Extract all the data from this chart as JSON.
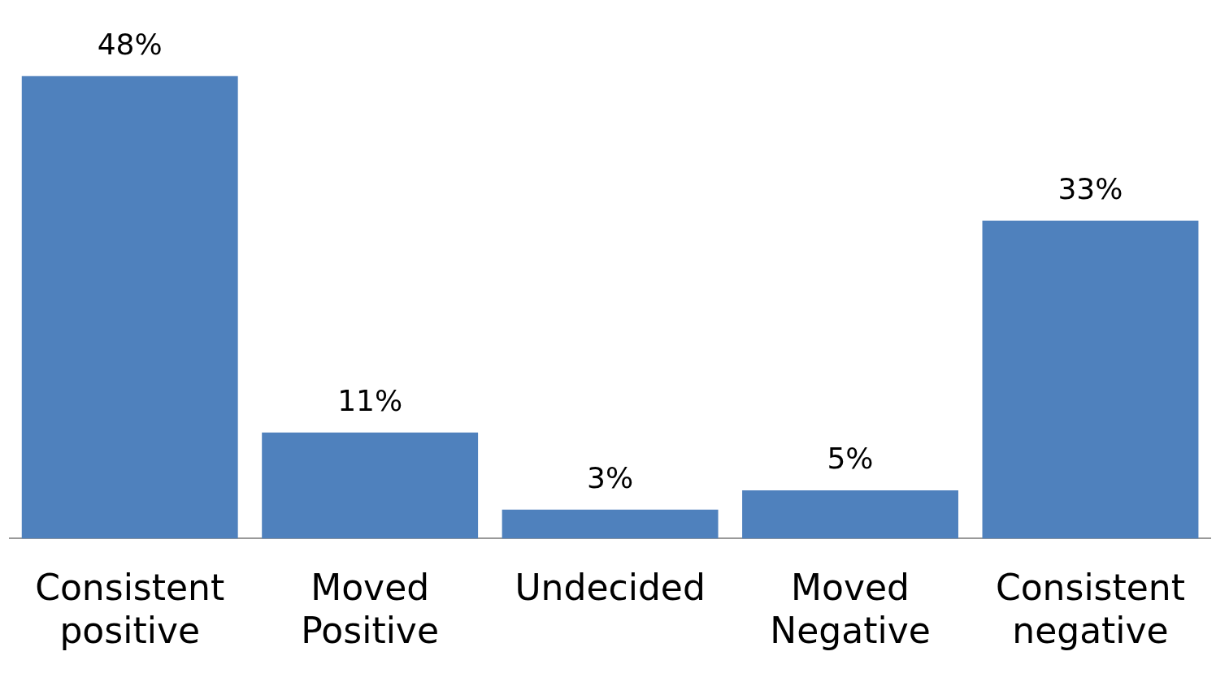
{
  "chart_data": {
    "type": "bar",
    "categories": [
      "Consistent positive",
      "Moved Positive",
      "Undecided",
      "Moved Negative",
      "Consistent negative"
    ],
    "values": [
      48,
      11,
      3,
      5,
      33
    ],
    "value_labels": [
      "48%",
      "11%",
      "3%",
      "5%",
      "33%"
    ],
    "color": "#4f81bd",
    "grid": false,
    "legend": false
  }
}
